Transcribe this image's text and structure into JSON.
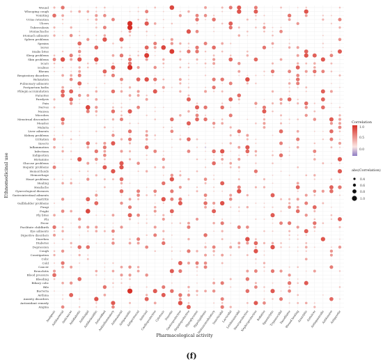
{
  "caption": "(f)",
  "legend": {
    "color_title": "Correlation",
    "color_ticks": [
      "1.0",
      "0.5",
      "0.0"
    ],
    "color_stops": {
      "high": "#d73027",
      "mid": "#fbe5e3",
      "low": "#8e7cc3"
    },
    "size_title": "abs(Correlation)",
    "size_ticks": [
      "0.4",
      "0.6",
      "0.8",
      "1.0"
    ]
  },
  "chart_data": {
    "type": "bubble-heatmap",
    "xlabel": "Pharmacological activity",
    "ylabel": "Ethnomedicinal use",
    "grid": true,
    "x": [
      "Analgesic",
      "Antibacterial",
      "Anticancer",
      "Antidiabetic",
      "Antifungal",
      "Antihelminthic",
      "Antioxidant",
      "Antiinflammatory",
      "Antimalarial",
      "Antiparasitic",
      "Antiprotozoal",
      "Antiviral",
      "Cardioprotective",
      "Cytotoxic",
      "Diuretic",
      "Gastroprotective",
      "Hepatoprotective",
      "Hypoglycemic",
      "Hypolipidemic",
      "Immunomodulatory",
      "Insecticidal",
      "Larvicidal",
      "Leishmanicidal",
      "Neuroprotective",
      "Nephroprotective",
      "Sedative",
      "Spasmolytic",
      "Trypanocidal",
      "Vasodilator",
      "Wound healing",
      "Anxiolytic",
      "Antiulcer",
      "Antispasmodic",
      "Antitussive",
      "Antipyretic"
    ],
    "y": [
      "Wound",
      "Whooping cough",
      "Vomiting",
      "Urine retention",
      "Ulcers",
      "Tuberculosis",
      "Stomachache",
      "Stomach ailments",
      "Spleen problems",
      "Sprains",
      "Sores",
      "Snake bites",
      "Sleep problems",
      "Skin problems",
      "Scars",
      "Scabies",
      "Rheum",
      "Respiratory disorders",
      "Relaxation",
      "Pulmonary ailments",
      "Postpartum baths",
      "Phlegm accumulation",
      "Parasites",
      "Paralysis",
      "Pain",
      "Nerves",
      "Nausea",
      "Microbes",
      "Menstrual discomfort",
      "Measles",
      "Malaria",
      "Liver ailments",
      "Kidney problems",
      "Irritation",
      "Insects",
      "Inflammation",
      "Infections",
      "Indigestion",
      "Histamine",
      "Glucose problems",
      "Hepatic problems",
      "Hemorrhoids",
      "Hemorrhage",
      "Heart problems",
      "Healing",
      "Headache",
      "Gynecological diseases",
      "Gastrointestinal ailments",
      "Gastritis",
      "Gallbladder problems",
      "Fungi",
      "Fright",
      "Fly bites",
      "Flu",
      "Fever",
      "Facilitate childbirth",
      "Eye ailments",
      "Digestive disorders",
      "Diarrhea",
      "Diabetes",
      "Depression",
      "Cough",
      "Constipation",
      "Colic",
      "Cold",
      "Cancer",
      "Bronchitis",
      "Blood pressure",
      "Bleeding",
      "Biliary colic",
      "Bile",
      "Bacteria",
      "Asthma",
      "Anxiety disorders",
      "Antioxidant remedy",
      "Angina"
    ],
    "correlation_range": [
      -0.2,
      1.0
    ],
    "points": [
      {
        "x": "Whooping cough",
        "y": "Wound",
        "value": 0.3
      },
      {
        "x": "Antibacterial",
        "y": "Wound",
        "value": 0.7
      },
      {
        "x": "Diuretic",
        "y": "Wound",
        "value": 0.9
      },
      {
        "x": "Antiparasitic",
        "y": "Ulcers",
        "value": 1.0
      },
      {
        "x": "Antiparasitic",
        "y": "Tuberculosis",
        "value": 1.0
      },
      {
        "x": "Antiparasitic",
        "y": "Scabies",
        "value": 1.0
      },
      {
        "x": "Antiparasitic",
        "y": "Bacteria",
        "value": 1.0
      },
      {
        "x": "Cytotoxic",
        "y": "Sores",
        "value": 0.9
      },
      {
        "x": "Diuretic",
        "y": "Snake bites",
        "value": 0.95
      },
      {
        "x": "Hepatoprotective",
        "y": "Snake bites",
        "value": 0.7
      },
      {
        "x": "Hypoglycemic",
        "y": "Snake bites",
        "value": 0.7
      },
      {
        "x": "Antiviral",
        "y": "Sleep problems",
        "value": 0.95
      },
      {
        "x": "Antimalarial",
        "y": "Sleep problems",
        "value": 0.7
      },
      {
        "x": "Antifungal",
        "y": "Nerves",
        "value": 0.9
      },
      {
        "x": "Antifungal",
        "y": "Fright",
        "value": 0.9
      },
      {
        "x": "Hypoglycemic",
        "y": "Nerves",
        "value": 0.8
      },
      {
        "x": "Hypolipidemic",
        "y": "Nerves",
        "value": 0.7
      },
      {
        "x": "Larvicidal",
        "y": "Tuberculosis",
        "value": 0.7
      },
      {
        "x": "Larvicidal",
        "y": "Ulcers",
        "value": 0.8
      },
      {
        "x": "Hepatoprotective",
        "y": "Measles",
        "value": 0.8
      },
      {
        "x": "Insecticidal",
        "y": "Relaxation",
        "value": 0.7
      },
      {
        "x": "Cardioprotective",
        "y": "Relaxation",
        "value": 0.7
      },
      {
        "x": "Gastroprotective",
        "y": "Cold",
        "value": 0.8
      },
      {
        "x": "Neuroprotective",
        "y": "Bleeding",
        "value": 0.7
      },
      {
        "x": "Antiinflammatory",
        "y": "Angina",
        "value": 0.6
      },
      {
        "x": "Antioxidant",
        "y": "Indigestion",
        "value": 0.6
      },
      {
        "x": "Hypolipidemic",
        "y": "Inflammation",
        "value": -0.2
      },
      {
        "x": "Anticancer",
        "y": "Constipation",
        "value": -0.1
      }
    ]
  }
}
